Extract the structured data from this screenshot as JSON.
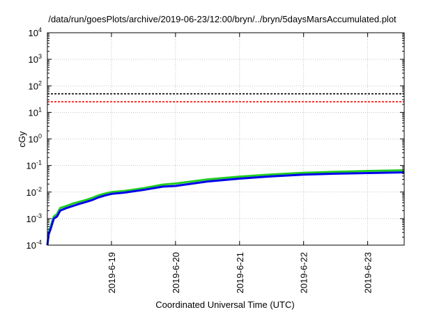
{
  "chart_data": {
    "type": "line",
    "title": "/data/run/goesPlots/archive/2019-06-23/12:00/bryn/../bryn/5daysMarsAccumulated.plot",
    "xlabel": "Coordinated Universal Time (UTC)",
    "ylabel": "cGy",
    "y_scale": "log",
    "ylim": [
      0.0001,
      10000
    ],
    "xlim": [
      0,
      5.57
    ],
    "x_ticks": [
      {
        "x": 1,
        "label": "2019-6-19"
      },
      {
        "x": 2,
        "label": "2019-6-20"
      },
      {
        "x": 3,
        "label": "2019-6-21"
      },
      {
        "x": 4,
        "label": "2019-6-22"
      },
      {
        "x": 5,
        "label": "2019-6-23"
      }
    ],
    "y_ticks": [
      {
        "value": 0.0001,
        "base": "10",
        "exp": "-4"
      },
      {
        "value": 0.001,
        "base": "10",
        "exp": "-3"
      },
      {
        "value": 0.01,
        "base": "10",
        "exp": "-2"
      },
      {
        "value": 0.1,
        "base": "10",
        "exp": "-1"
      },
      {
        "value": 1,
        "base": "10",
        "exp": "0"
      },
      {
        "value": 10,
        "base": "10",
        "exp": "1"
      },
      {
        "value": 100,
        "base": "10",
        "exp": "2"
      },
      {
        "value": 1000,
        "base": "10",
        "exp": "3"
      },
      {
        "value": 10000,
        "base": "10",
        "exp": "4"
      }
    ],
    "grid": true,
    "legend": "none",
    "reference_lines": [
      {
        "y": 50,
        "color": "#000000",
        "style": "dashed"
      },
      {
        "y": 25,
        "color": "#ff0000",
        "style": "dashed"
      }
    ],
    "series": [
      {
        "color": "#22cc22",
        "x": [
          0.0,
          0.02,
          0.05,
          0.1,
          0.15,
          0.2,
          0.3,
          0.4,
          0.5,
          0.6,
          0.7,
          0.8,
          0.9,
          1.0,
          1.2,
          1.5,
          1.8,
          2.0,
          2.5,
          3.0,
          3.5,
          4.0,
          4.5,
          5.0,
          5.57
        ],
        "y": [
          0.0001,
          0.0003,
          0.0005,
          0.0012,
          0.0015,
          0.0025,
          0.003,
          0.0037,
          0.0043,
          0.005,
          0.006,
          0.0075,
          0.0088,
          0.01,
          0.011,
          0.014,
          0.019,
          0.021,
          0.03,
          0.038,
          0.046,
          0.053,
          0.058,
          0.062,
          0.066
        ]
      },
      {
        "color": "#0000ee",
        "x": [
          0.0,
          0.02,
          0.05,
          0.1,
          0.15,
          0.2,
          0.3,
          0.4,
          0.5,
          0.6,
          0.7,
          0.8,
          0.9,
          1.0,
          1.2,
          1.5,
          1.8,
          2.0,
          2.5,
          3.0,
          3.5,
          4.0,
          4.5,
          5.0,
          5.57
        ],
        "y": [
          0.0001,
          0.00025,
          0.0004,
          0.001,
          0.0012,
          0.002,
          0.0025,
          0.003,
          0.0036,
          0.0042,
          0.005,
          0.0063,
          0.0074,
          0.0085,
          0.0095,
          0.012,
          0.016,
          0.017,
          0.025,
          0.032,
          0.039,
          0.045,
          0.049,
          0.052,
          0.055
        ]
      }
    ]
  }
}
